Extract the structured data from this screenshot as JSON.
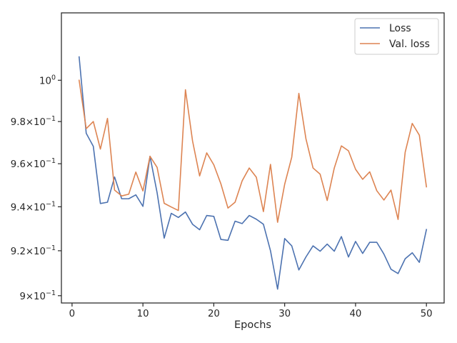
{
  "chart_data": {
    "type": "line",
    "title": "",
    "xlabel": "Epochs",
    "ylabel": "",
    "yscale": "log",
    "grid": false,
    "legend_position": "top-right",
    "xlim": [
      -1.5,
      52.5
    ],
    "ylim": [
      0.8968,
      1.0335
    ],
    "x_ticks": [
      0,
      10,
      20,
      30,
      40,
      50
    ],
    "y_ticks": [
      {
        "value": 0.9,
        "mantissa": "9",
        "exponent": "−1"
      },
      {
        "value": 0.92,
        "mantissa": "9.2",
        "exponent": "−1"
      },
      {
        "value": 0.94,
        "mantissa": "9.4",
        "exponent": "−1"
      },
      {
        "value": 0.96,
        "mantissa": "9.6",
        "exponent": "−1"
      },
      {
        "value": 0.98,
        "mantissa": "9.8",
        "exponent": "−1"
      },
      {
        "value": 1.0,
        "mantissa": "",
        "exponent": "0"
      }
    ],
    "x": [
      1,
      2,
      3,
      4,
      5,
      6,
      7,
      8,
      9,
      10,
      11,
      12,
      13,
      14,
      15,
      16,
      17,
      18,
      19,
      20,
      21,
      22,
      23,
      24,
      25,
      26,
      27,
      28,
      29,
      30,
      31,
      32,
      33,
      34,
      35,
      36,
      37,
      38,
      39,
      40,
      41,
      42,
      43,
      44,
      45,
      46,
      47,
      48,
      49,
      50
    ],
    "series": [
      {
        "name": "Loss",
        "color": "#4c72b0",
        "values": [
          1.0115,
          0.9744,
          0.9682,
          0.9415,
          0.9421,
          0.9538,
          0.9437,
          0.9437,
          0.9455,
          0.9402,
          0.9635,
          0.9465,
          0.9257,
          0.937,
          0.9351,
          0.9376,
          0.932,
          0.9295,
          0.936,
          0.9356,
          0.9251,
          0.9247,
          0.9334,
          0.9323,
          0.936,
          0.9343,
          0.932,
          0.92,
          0.9029,
          0.9255,
          0.9222,
          0.9114,
          0.9172,
          0.9222,
          0.9198,
          0.923,
          0.9198,
          0.9264,
          0.9172,
          0.9242,
          0.9188,
          0.9238,
          0.9238,
          0.9185,
          0.9117,
          0.9098,
          0.9164,
          0.9191,
          0.9148,
          0.9296
        ]
      },
      {
        "name": "Val. loss",
        "color": "#dd8452",
        "values": [
          1.0,
          0.9766,
          0.98,
          0.9669,
          0.9815,
          0.9477,
          0.945,
          0.9458,
          0.9561,
          0.9473,
          0.9635,
          0.9583,
          0.9416,
          0.9399,
          0.9383,
          0.9954,
          0.9708,
          0.9543,
          0.9651,
          0.9595,
          0.9506,
          0.9394,
          0.9421,
          0.952,
          0.958,
          0.9537,
          0.9378,
          0.9597,
          0.9329,
          0.9504,
          0.9631,
          0.9936,
          0.9718,
          0.958,
          0.9551,
          0.9429,
          0.958,
          0.9684,
          0.9661,
          0.9574,
          0.9527,
          0.9562,
          0.9474,
          0.9431,
          0.9477,
          0.9342,
          0.9654,
          0.9791,
          0.9735,
          0.9492
        ]
      }
    ]
  }
}
